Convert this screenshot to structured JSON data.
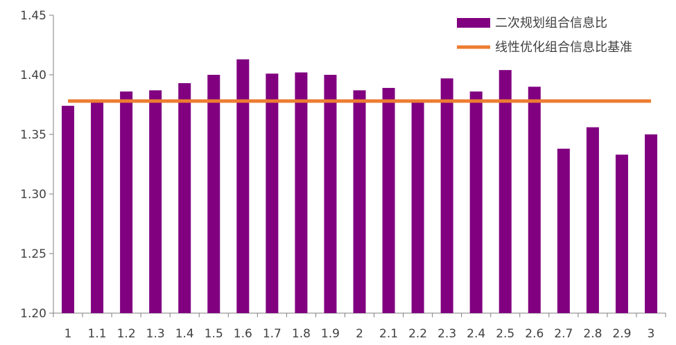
{
  "chart_data": {
    "type": "bar",
    "categories": [
      "1",
      "1.1",
      "1.2",
      "1.3",
      "1.4",
      "1.5",
      "1.6",
      "1.7",
      "1.8",
      "1.9",
      "2",
      "2.1",
      "2.2",
      "2.3",
      "2.4",
      "2.5",
      "2.6",
      "2.7",
      "2.8",
      "2.9",
      "3"
    ],
    "series": [
      {
        "name": "二次规划组合信息比",
        "type": "bar",
        "color": "#800080",
        "values": [
          1.374,
          1.377,
          1.386,
          1.387,
          1.393,
          1.4,
          1.413,
          1.401,
          1.402,
          1.4,
          1.387,
          1.389,
          1.377,
          1.397,
          1.386,
          1.404,
          1.39,
          1.338,
          1.356,
          1.333,
          1.35
        ]
      },
      {
        "name": "线性优化组合信息比基准",
        "type": "line",
        "color": "#ED7D31",
        "value": 1.378
      }
    ],
    "ylim": [
      1.2,
      1.45
    ],
    "yticks": [
      "1.20",
      "1.25",
      "1.30",
      "1.35",
      "1.40",
      "1.45"
    ],
    "grid": false,
    "legend": "top-right"
  }
}
